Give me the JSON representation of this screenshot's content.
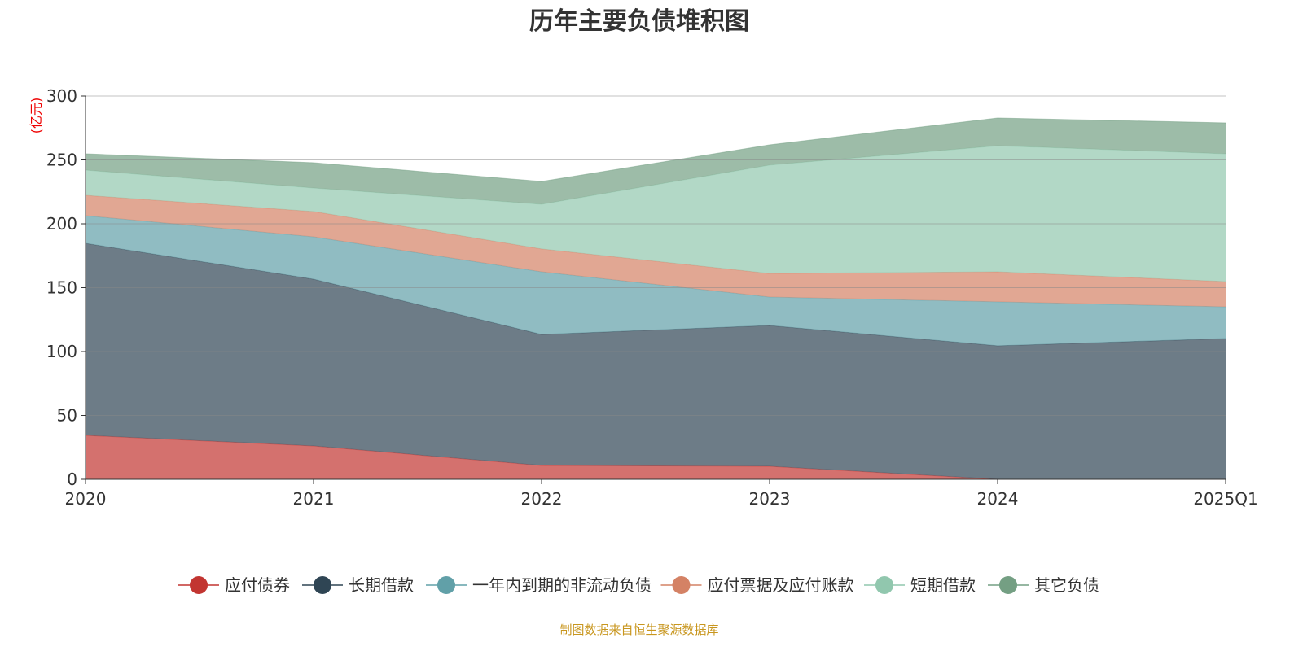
{
  "chart_data": {
    "type": "area",
    "stacked": true,
    "title": "历年主要负债堆积图",
    "ylabel": "(亿元)",
    "ylim": [
      0,
      300
    ],
    "yticks": [
      0,
      50,
      100,
      150,
      200,
      250,
      300
    ],
    "categories": [
      "2020",
      "2021",
      "2022",
      "2023",
      "2024",
      "2025Q1"
    ],
    "grid": true,
    "legend_position": "bottom",
    "series": [
      {
        "name": "应付债券",
        "color": "#c23531",
        "values": [
          34.4,
          26.1,
          10.8,
          10.2,
          0,
          0
        ]
      },
      {
        "name": "长期借款",
        "color": "#2f4554",
        "values": [
          150.3,
          130.6,
          102.6,
          110.2,
          104.5,
          110.2
        ]
      },
      {
        "name": "一年内到期的非流动负债",
        "color": "#61a0a8",
        "values": [
          21.7,
          33.1,
          49.0,
          22.3,
          34.4,
          24.8
        ]
      },
      {
        "name": "应付票据及应付账款",
        "color": "#d48265",
        "values": [
          15.9,
          19.8,
          17.9,
          18.4,
          23.5,
          19.8
        ]
      },
      {
        "name": "短期借款",
        "color": "#91c7ae",
        "values": [
          19.7,
          18.4,
          35.0,
          84.8,
          98.7,
          100.0
        ]
      },
      {
        "name": "其它负债",
        "color": "#749f83",
        "values": [
          12.8,
          19.8,
          17.8,
          15.9,
          21.7,
          24.2
        ]
      }
    ]
  },
  "source": "制图数据来自恒生聚源数据库"
}
